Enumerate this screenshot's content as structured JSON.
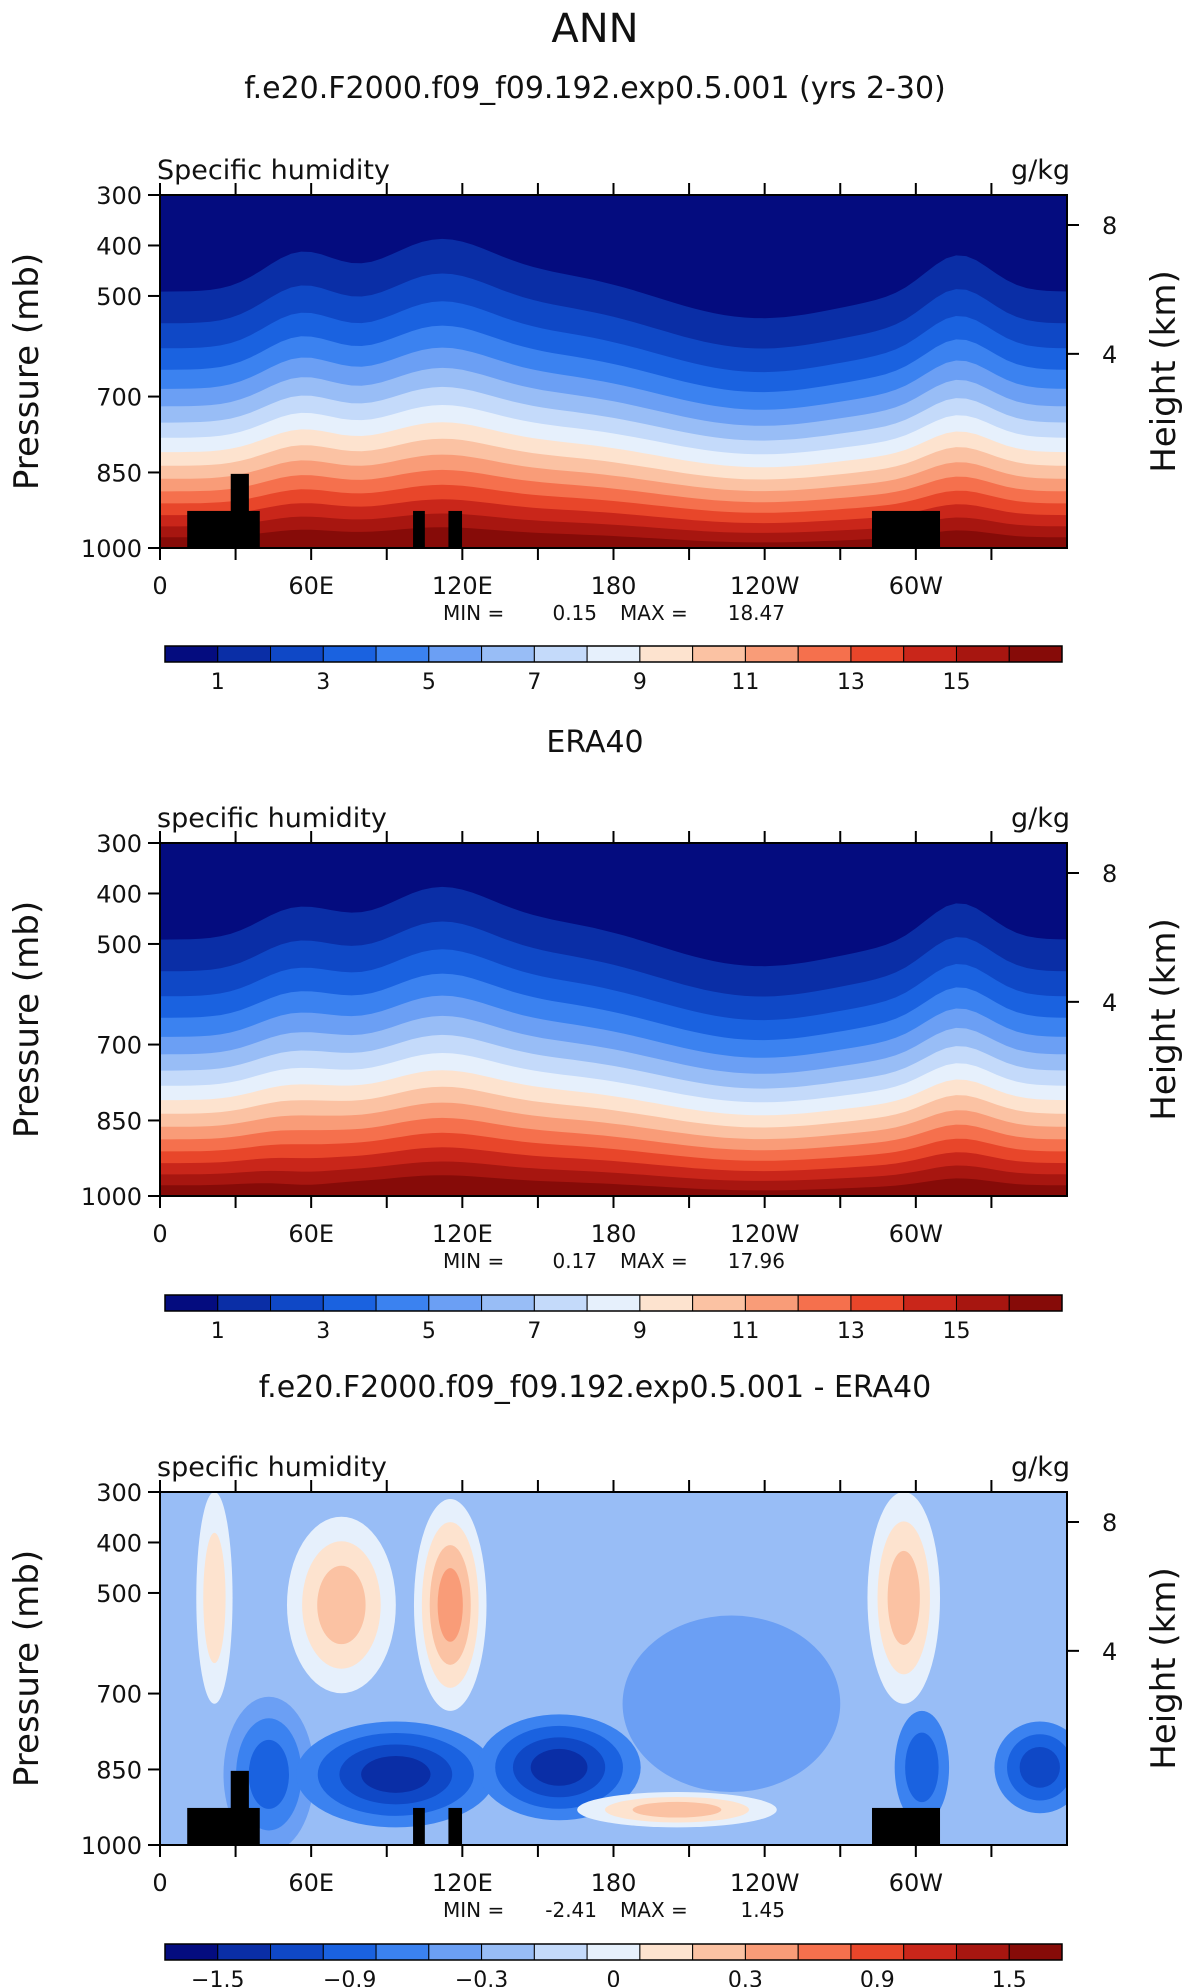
{
  "figure_title": "ANN",
  "chart_data": [
    {
      "type": "heatmap",
      "title": "f.e20.F2000.f09_f09.192.exp0.5.001 (yrs 2-30)",
      "variable": "Specific humidity",
      "units": "g/kg",
      "ylabel": "Pressure (mb)",
      "y2label": "Height (km)",
      "x_ticks": [
        "0",
        "60E",
        "120E",
        "180",
        "120W",
        "60W"
      ],
      "x_range": [
        0,
        360
      ],
      "y_ticks": [
        "300",
        "400",
        "500",
        "700",
        "850",
        "1000"
      ],
      "y2_ticks": [
        "8",
        "4"
      ],
      "stats_min_label": "MIN =",
      "stats_min": "0.15",
      "stats_max_label": "MAX =",
      "stats_max": "18.47",
      "colorbar_labels": [
        "1",
        "3",
        "5",
        "7",
        "9",
        "11",
        "13",
        "15"
      ],
      "colorbar_levels": [
        1,
        3,
        5,
        7,
        9,
        11,
        13,
        15
      ],
      "palette": [
        "#040c7f",
        "#0a2ea6",
        "#0f48c6",
        "#1a62e0",
        "#3b82f0",
        "#6b9ff4",
        "#98bdf6",
        "#c4dafa",
        "#e6f0fc",
        "#fde3cf",
        "#fbc2a3",
        "#f99c78",
        "#f5704d",
        "#e8462a",
        "#c9261a",
        "#a71610",
        "#860b08"
      ],
      "orography": true
    },
    {
      "type": "heatmap",
      "title": "ERA40",
      "variable": "specific humidity",
      "units": "g/kg",
      "ylabel": "Pressure (mb)",
      "y2label": "Height (km)",
      "x_ticks": [
        "0",
        "60E",
        "120E",
        "180",
        "120W",
        "60W"
      ],
      "x_range": [
        0,
        360
      ],
      "y_ticks": [
        "300",
        "400",
        "500",
        "700",
        "850",
        "1000"
      ],
      "y2_ticks": [
        "8",
        "4"
      ],
      "stats_min_label": "MIN =",
      "stats_min": "0.17",
      "stats_max_label": "MAX =",
      "stats_max": "17.96",
      "colorbar_labels": [
        "1",
        "3",
        "5",
        "7",
        "9",
        "11",
        "13",
        "15"
      ],
      "colorbar_levels": [
        1,
        3,
        5,
        7,
        9,
        11,
        13,
        15
      ],
      "palette": [
        "#040c7f",
        "#0a2ea6",
        "#0f48c6",
        "#1a62e0",
        "#3b82f0",
        "#6b9ff4",
        "#98bdf6",
        "#c4dafa",
        "#e6f0fc",
        "#fde3cf",
        "#fbc2a3",
        "#f99c78",
        "#f5704d",
        "#e8462a",
        "#c9261a",
        "#a71610",
        "#860b08"
      ],
      "orography": false
    },
    {
      "type": "heatmap",
      "title": "f.e20.F2000.f09_f09.192.exp0.5.001 - ERA40",
      "variable": "specific humidity",
      "units": "g/kg",
      "ylabel": "Pressure (mb)",
      "y2label": "Height (km)",
      "x_ticks": [
        "0",
        "60E",
        "120E",
        "180",
        "120W",
        "60W"
      ],
      "x_range": [
        0,
        360
      ],
      "y_ticks": [
        "300",
        "400",
        "500",
        "700",
        "850",
        "1000"
      ],
      "y2_ticks": [
        "8",
        "4"
      ],
      "stats_min_label": "MIN =",
      "stats_min": "-2.41",
      "stats_max_label": "MAX =",
      "stats_max": "1.45",
      "colorbar_labels": [
        "−1.5",
        "−0.9",
        "−0.3",
        "0",
        "0.3",
        "0.9",
        "1.5"
      ],
      "colorbar_levels": [
        -1.5,
        -0.9,
        -0.3,
        0,
        0.3,
        0.9,
        1.5
      ],
      "palette": [
        "#040c7f",
        "#0a2ea6",
        "#0f48c6",
        "#1a62e0",
        "#3b82f0",
        "#6b9ff4",
        "#98bdf6",
        "#c4dafa",
        "#e6f0fc",
        "#fde3cf",
        "#fbc2a3",
        "#f99c78",
        "#f5704d",
        "#e8462a",
        "#c9261a",
        "#a71610",
        "#860b08"
      ],
      "orography": true
    }
  ]
}
